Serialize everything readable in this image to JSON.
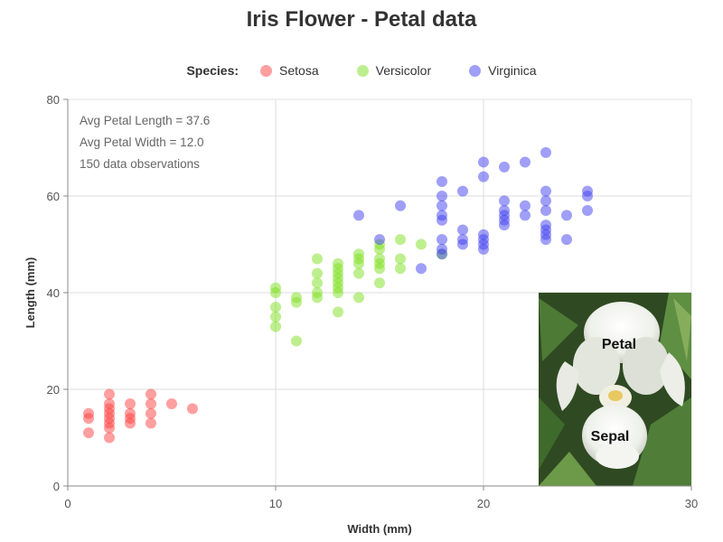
{
  "chart_data": {
    "type": "scatter",
    "title": "Iris Flower - Petal data",
    "xlabel": "Width (mm)",
    "ylabel": "Length (mm)",
    "xlim": [
      0,
      30
    ],
    "ylim": [
      0,
      80
    ],
    "xticks": [
      "0",
      "10",
      "20",
      "30"
    ],
    "yticks": [
      "0",
      "20",
      "40",
      "60",
      "80"
    ],
    "grid": true,
    "legend": {
      "heading": "Species:",
      "placement": "top"
    },
    "annotations": [
      "Avg Petal Length = 37.6",
      "Avg Petal Width = 12.0",
      "150 data observations"
    ],
    "inset_image": {
      "icon": "iris-flower-photo",
      "labels": [
        "Petal",
        "Sepal"
      ]
    },
    "series": [
      {
        "name": "Setosa",
        "color": "#ff4040",
        "points": [
          [
            1,
            15
          ],
          [
            1,
            14
          ],
          [
            1,
            11
          ],
          [
            2,
            19
          ],
          [
            2,
            17
          ],
          [
            2,
            16
          ],
          [
            2,
            15
          ],
          [
            2,
            14
          ],
          [
            2,
            13
          ],
          [
            2,
            12
          ],
          [
            2,
            10
          ],
          [
            3,
            17
          ],
          [
            3,
            15
          ],
          [
            3,
            14
          ],
          [
            3,
            13
          ],
          [
            4,
            19
          ],
          [
            4,
            17
          ],
          [
            4,
            15
          ],
          [
            4,
            13
          ],
          [
            5,
            17
          ],
          [
            6,
            16
          ]
        ]
      },
      {
        "name": "Versicolor",
        "color": "#7ee020",
        "points": [
          [
            10,
            41
          ],
          [
            10,
            40
          ],
          [
            10,
            37
          ],
          [
            10,
            35
          ],
          [
            10,
            33
          ],
          [
            11,
            39
          ],
          [
            11,
            38
          ],
          [
            11,
            30
          ],
          [
            12,
            47
          ],
          [
            12,
            44
          ],
          [
            12,
            42
          ],
          [
            12,
            40
          ],
          [
            12,
            39
          ],
          [
            13,
            46
          ],
          [
            13,
            45
          ],
          [
            13,
            44
          ],
          [
            13,
            43
          ],
          [
            13,
            42
          ],
          [
            13,
            41
          ],
          [
            13,
            40
          ],
          [
            13,
            36
          ],
          [
            14,
            48
          ],
          [
            14,
            47
          ],
          [
            14,
            46
          ],
          [
            14,
            44
          ],
          [
            14,
            39
          ],
          [
            15,
            50
          ],
          [
            15,
            49
          ],
          [
            15,
            47
          ],
          [
            15,
            46
          ],
          [
            15,
            45
          ],
          [
            15,
            42
          ],
          [
            16,
            51
          ],
          [
            16,
            47
          ],
          [
            16,
            45
          ],
          [
            17,
            50
          ],
          [
            18,
            48
          ]
        ]
      },
      {
        "name": "Virginica",
        "color": "#4040f0",
        "points": [
          [
            14,
            56
          ],
          [
            15,
            51
          ],
          [
            16,
            58
          ],
          [
            17,
            45
          ],
          [
            18,
            63
          ],
          [
            18,
            60
          ],
          [
            18,
            58
          ],
          [
            18,
            56
          ],
          [
            18,
            55
          ],
          [
            18,
            51
          ],
          [
            18,
            49
          ],
          [
            18,
            48
          ],
          [
            19,
            61
          ],
          [
            19,
            53
          ],
          [
            19,
            51
          ],
          [
            19,
            50
          ],
          [
            20,
            67
          ],
          [
            20,
            64
          ],
          [
            20,
            52
          ],
          [
            20,
            51
          ],
          [
            20,
            50
          ],
          [
            20,
            49
          ],
          [
            21,
            66
          ],
          [
            21,
            59
          ],
          [
            21,
            57
          ],
          [
            21,
            56
          ],
          [
            21,
            55
          ],
          [
            21,
            54
          ],
          [
            22,
            67
          ],
          [
            22,
            58
          ],
          [
            22,
            56
          ],
          [
            23,
            69
          ],
          [
            23,
            61
          ],
          [
            23,
            59
          ],
          [
            23,
            57
          ],
          [
            23,
            54
          ],
          [
            23,
            53
          ],
          [
            23,
            52
          ],
          [
            23,
            51
          ],
          [
            24,
            56
          ],
          [
            24,
            51
          ],
          [
            25,
            61
          ],
          [
            25,
            60
          ],
          [
            25,
            57
          ]
        ]
      }
    ]
  }
}
